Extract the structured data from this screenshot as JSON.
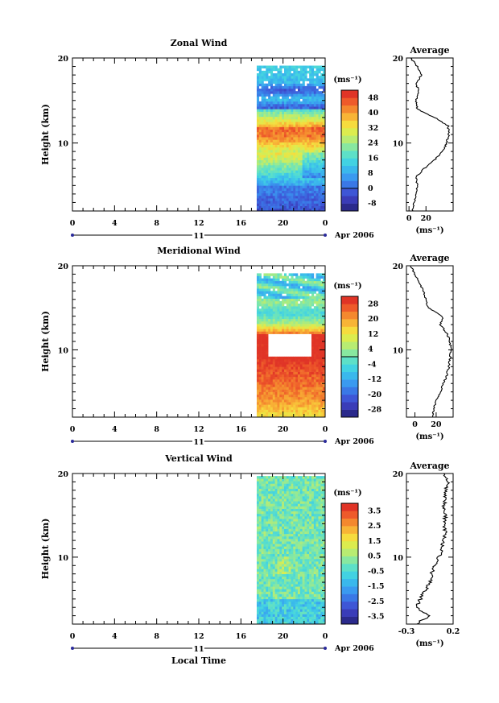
{
  "chart_data": [
    {
      "type": "heatmap",
      "title": "Zonal Wind",
      "ylabel": "Height (km)",
      "xlabel": "",
      "x_ticks": [
        "0",
        "4",
        "8",
        "12",
        "16",
        "20",
        "0"
      ],
      "xlim": [
        0,
        24
      ],
      "y_ticks": [
        "20",
        "10"
      ],
      "ylim": [
        2,
        20
      ],
      "date_tick": "11",
      "date_label": "Apr 2006",
      "data_start_hour": 17.5,
      "colorbar": {
        "unit_label": "(ms⁻¹)",
        "tick_labels": [
          "48",
          "40",
          "32",
          "24",
          "16",
          "8",
          "0",
          "-8"
        ],
        "range": [
          -12,
          52
        ],
        "colors": [
          "#2b2a8c",
          "#3a3cb8",
          "#3e56d6",
          "#3a78e6",
          "#3a9af0",
          "#3ab8ec",
          "#42d2e2",
          "#5de0c8",
          "#88e8a0",
          "#b8ec72",
          "#dcec4e",
          "#f6dc3e",
          "#f8b436",
          "#f4882e",
          "#ee5a2a",
          "#e03426"
        ]
      },
      "profile": {
        "title": "Average",
        "x_ticks": [
          "0",
          "20"
        ],
        "xlim": [
          -3,
          52
        ],
        "unit_label": "(ms⁻¹)",
        "heights": [
          2,
          3,
          4,
          5,
          6,
          7,
          8,
          9,
          10,
          11,
          12,
          13,
          14,
          15,
          16,
          17,
          18,
          19,
          20
        ],
        "values": [
          4,
          6,
          8,
          10,
          8,
          18,
          30,
          40,
          44,
          47,
          46,
          30,
          10,
          8,
          12,
          8,
          15,
          10,
          2
        ]
      }
    },
    {
      "type": "heatmap",
      "title": "Meridional Wind",
      "ylabel": "Height (km)",
      "xlabel": "",
      "x_ticks": [
        "0",
        "4",
        "8",
        "12",
        "16",
        "20",
        "0"
      ],
      "xlim": [
        0,
        24
      ],
      "y_ticks": [
        "20",
        "10"
      ],
      "ylim": [
        2,
        20
      ],
      "date_tick": "11",
      "date_label": "Apr 2006",
      "data_start_hour": 17.5,
      "colorbar": {
        "unit_label": "(ms⁻¹)",
        "tick_labels": [
          "28",
          "20",
          "12",
          "4",
          "-4",
          "-12",
          "-20",
          "-28"
        ],
        "range": [
          -32,
          32
        ],
        "colors": [
          "#2b2a8c",
          "#3a3cb8",
          "#3e56d6",
          "#3a78e6",
          "#3a9af0",
          "#3ab8ec",
          "#42d2e2",
          "#5de0c8",
          "#88e8a0",
          "#b8ec72",
          "#dcec4e",
          "#f6dc3e",
          "#f8b436",
          "#f4882e",
          "#ee5a2a",
          "#e03426"
        ]
      },
      "profile": {
        "title": "Average",
        "x_ticks": [
          "0",
          "20"
        ],
        "xlim": [
          -8,
          36
        ],
        "unit_label": "(ms⁻¹)",
        "heights": [
          2,
          3,
          4,
          5,
          6,
          7,
          8,
          9,
          10,
          11,
          12,
          13,
          14,
          15,
          16,
          17,
          18,
          19,
          20
        ],
        "values": [
          16,
          18,
          20,
          24,
          27,
          30,
          32,
          33,
          34,
          33,
          30,
          24,
          26,
          12,
          10,
          8,
          4,
          0,
          -4
        ]
      }
    },
    {
      "type": "heatmap",
      "title": "Vertical Wind",
      "ylabel": "Height (km)",
      "xlabel": "Local Time",
      "x_ticks": [
        "0",
        "4",
        "8",
        "12",
        "16",
        "20",
        "0"
      ],
      "xlim": [
        0,
        24
      ],
      "y_ticks": [
        "20",
        "10"
      ],
      "ylim": [
        2,
        20
      ],
      "date_tick": "11",
      "date_label": "Apr 2006",
      "data_start_hour": 17.5,
      "colorbar": {
        "unit_label": "(ms⁻¹)",
        "tick_labels": [
          "3.5",
          "2.5",
          "1.5",
          "0.5",
          "-0.5",
          "-1.5",
          "-2.5",
          "-3.5"
        ],
        "range": [
          -4,
          4
        ],
        "colors": [
          "#2b2a8c",
          "#3a3cb8",
          "#3e56d6",
          "#3a78e6",
          "#3a9af0",
          "#3ab8ec",
          "#42d2e2",
          "#5de0c8",
          "#88e8a0",
          "#b8ec72",
          "#dcec4e",
          "#f6dc3e",
          "#f8b436",
          "#f4882e",
          "#ee5a2a",
          "#e03426"
        ]
      },
      "profile": {
        "title": "Average",
        "x_ticks": [
          "-0.3",
          "0.2"
        ],
        "xlim": [
          -0.3,
          0.2
        ],
        "unit_label": "(ms⁻¹)",
        "heights": [
          2,
          3,
          4,
          5,
          6,
          7,
          8,
          9,
          10,
          11,
          12,
          13,
          14,
          15,
          16,
          17,
          18,
          19,
          20
        ],
        "values": [
          -0.2,
          -0.05,
          -0.2,
          -0.15,
          -0.1,
          -0.05,
          -0.03,
          0.0,
          0.05,
          0.08,
          0.1,
          0.12,
          0.1,
          0.12,
          0.1,
          0.12,
          0.12,
          0.15,
          0.1
        ]
      }
    }
  ]
}
